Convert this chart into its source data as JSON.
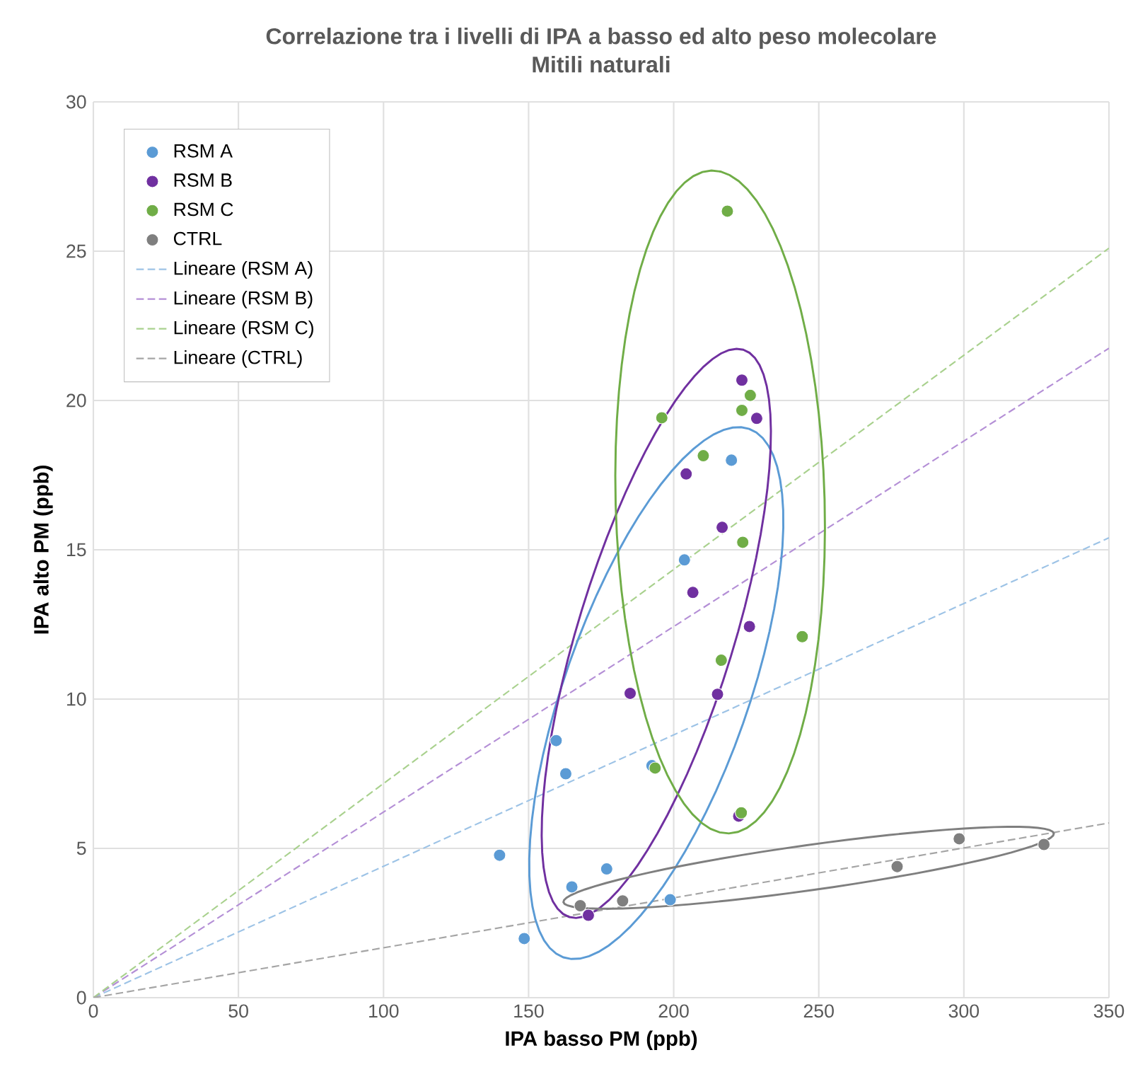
{
  "chart_data": {
    "type": "scatter",
    "title": "Correlazione tra i livelli di IPA a basso ed alto peso molecolare",
    "subtitle": "Mitili naturali",
    "xlabel": "IPA basso PM (ppb)",
    "ylabel": "IPA alto PM (ppb)",
    "xlim": [
      0,
      350
    ],
    "ylim": [
      0,
      30
    ],
    "xticks": [
      0,
      50,
      100,
      150,
      200,
      250,
      300,
      350
    ],
    "yticks": [
      0,
      5,
      10,
      15,
      20,
      25,
      30
    ],
    "grid": true,
    "legend": "top left",
    "marker": "circle",
    "series": [
      {
        "name": "RSM A",
        "color": "#5b9bd5",
        "x": [
          140.0,
          148.5,
          159.5,
          162.8,
          164.9,
          176.9,
          198.8,
          192.5,
          219.9,
          203.7
        ],
        "values": [
          4.77,
          1.98,
          8.61,
          7.5,
          3.71,
          4.31,
          3.28,
          7.77,
          18.0,
          14.66
        ]
      },
      {
        "name": "RSM B",
        "color": "#7030a0",
        "x": [
          223.5,
          228.6,
          204.3,
          216.7,
          206.6,
          226.1,
          185.0,
          215.1,
          222.4,
          170.6
        ],
        "values": [
          20.68,
          19.4,
          17.54,
          15.75,
          13.57,
          12.43,
          10.19,
          10.16,
          6.08,
          2.76
        ]
      },
      {
        "name": "RSM C",
        "color": "#70ad47",
        "x": [
          218.5,
          226.4,
          223.5,
          195.9,
          210.2,
          223.8,
          244.3,
          216.4,
          193.6,
          223.3
        ],
        "values": [
          26.34,
          20.17,
          19.67,
          19.42,
          18.15,
          15.25,
          12.09,
          11.3,
          7.69,
          6.19
        ]
      },
      {
        "name": "CTRL",
        "color": "#7f7f7f",
        "x": [
          167.8,
          182.4,
          277.0,
          298.4,
          327.6
        ],
        "values": [
          3.08,
          3.24,
          4.39,
          5.32,
          5.13
        ]
      },
      {
        "name": "Lineare (RSM A)",
        "type": "line",
        "marker": "none",
        "line_style": "dashed",
        "color": "#9dc3e6",
        "x": [
          0,
          350
        ],
        "values": [
          0,
          15.4
        ]
      },
      {
        "name": "Lineare (RSM B)",
        "type": "line",
        "marker": "none",
        "line_style": "dashed",
        "color": "#b48fd6",
        "x": [
          0,
          350
        ],
        "values": [
          0,
          21.75
        ]
      },
      {
        "name": "Lineare (RSM C)",
        "type": "line",
        "marker": "none",
        "line_style": "dashed",
        "color": "#a9d18e",
        "x": [
          0,
          350
        ],
        "values": [
          0,
          25.1
        ]
      },
      {
        "name": "Lineare (CTRL)",
        "type": "line",
        "marker": "none",
        "line_style": "dashed",
        "color": "#a5a5a5",
        "x": [
          0,
          350
        ],
        "values": [
          0,
          5.85
        ]
      }
    ]
  }
}
